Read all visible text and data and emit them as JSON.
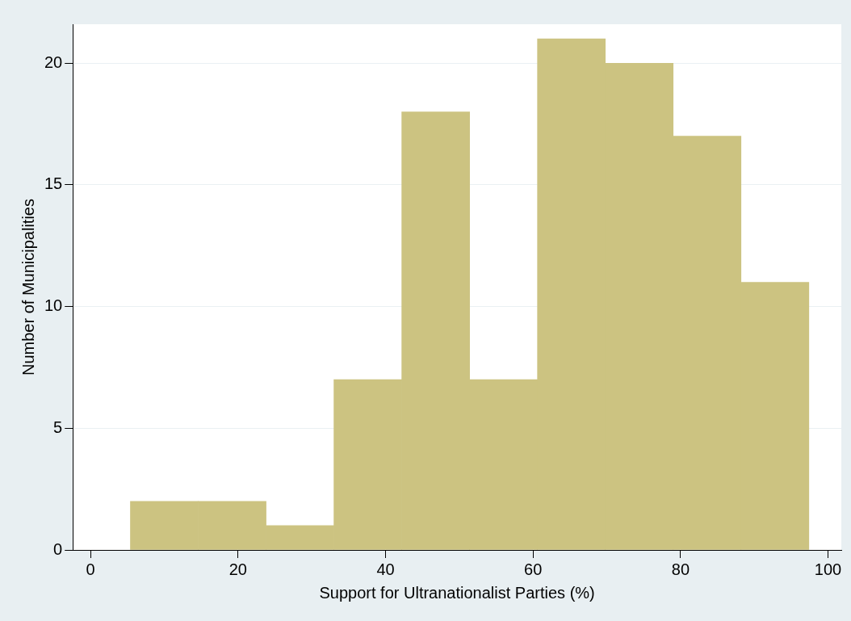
{
  "chart_data": {
    "type": "histogram",
    "xlabel": "Support for Ultranationalist Parties (%)",
    "ylabel": "Number of Municipalities",
    "bins": [
      5.4,
      14.6,
      23.8,
      33,
      42.2,
      51.4,
      60.6,
      69.8,
      79,
      88.2,
      97.4
    ],
    "values": [
      2,
      2,
      1,
      7,
      18,
      7,
      21,
      20,
      17,
      11
    ],
    "color": "#ccc381",
    "xlim": [
      -2.4,
      101.8
    ],
    "xticks": [
      0,
      20,
      40,
      60,
      80,
      100
    ],
    "ylim": [
      0,
      21.6
    ],
    "yticks": [
      0,
      5,
      10,
      15,
      20
    ],
    "grid": "y",
    "legend": false
  }
}
